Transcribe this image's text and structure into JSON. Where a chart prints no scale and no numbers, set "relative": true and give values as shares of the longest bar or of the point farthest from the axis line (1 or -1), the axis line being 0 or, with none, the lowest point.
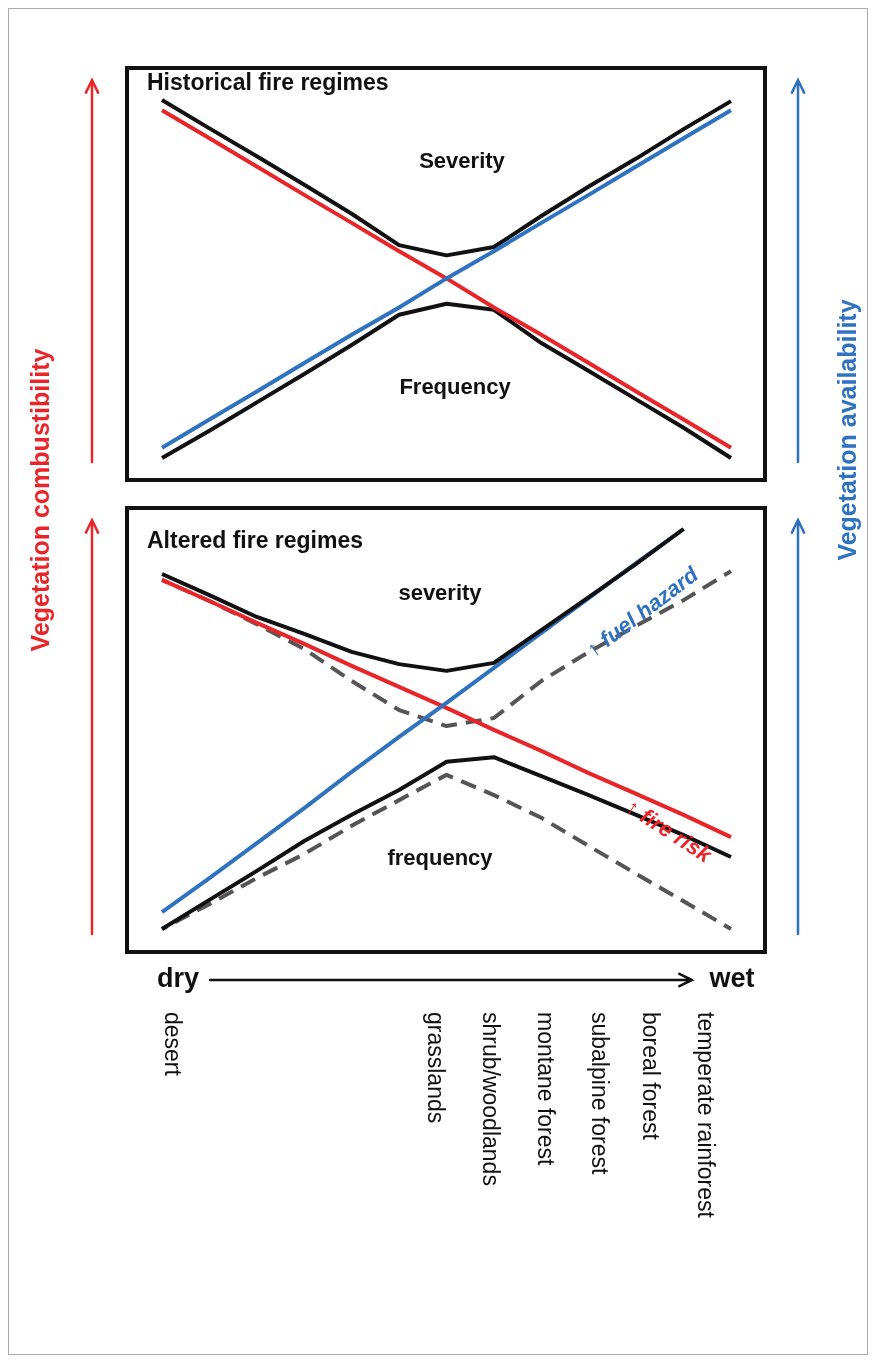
{
  "chart_data": [
    {
      "type": "line",
      "title": "Historical fire regimes",
      "relative": true,
      "categories": [
        null,
        null,
        null,
        null,
        null,
        null,
        null,
        null,
        null,
        null,
        null,
        null,
        null
      ],
      "series": [
        {
          "name": "Severity",
          "color": "#111111",
          "values": [
            1.0,
            0.925,
            0.851,
            0.776,
            0.699,
            0.616,
            0.589,
            0.611,
            0.693,
            0.771,
            0.845,
            0.923,
            0.997
          ]
        },
        {
          "name": "Frequency",
          "color": "#111111",
          "values": [
            0.053,
            0.125,
            0.2,
            0.275,
            0.352,
            0.432,
            0.461,
            0.445,
            0.357,
            0.283,
            0.208,
            0.133,
            0.053
          ]
        },
        {
          "color": "#e8262a",
          "values": [
            0.973,
            0.899,
            0.824,
            0.749,
            0.675,
            0.6,
            0.528,
            0.451,
            0.379,
            0.304,
            0.229,
            0.155,
            0.08
          ]
        },
        {
          "color": "#2f72c0",
          "values": [
            0.08,
            0.155,
            0.229,
            0.304,
            0.379,
            0.451,
            0.528,
            0.6,
            0.675,
            0.749,
            0.824,
            0.899,
            0.973
          ]
        }
      ]
    },
    {
      "type": "line",
      "title": "Altered fire regimes",
      "ylabel": "Vegetation combustibility",
      "y2label": "Vegetation availability",
      "relative": true,
      "categories": [
        null,
        null,
        null,
        null,
        null,
        null,
        null,
        null,
        null,
        null,
        null,
        null,
        null
      ],
      "series": [
        {
          "color": "#555555",
          "line_style": "dashed",
          "values": [
            0.879,
            0.829,
            0.774,
            0.715,
            0.639,
            0.57,
            0.532,
            0.551,
            0.639,
            0.708,
            0.77,
            0.831,
            0.9
          ]
        },
        {
          "color": "#555555",
          "line_style": "dashed",
          "values": [
            0.05,
            0.109,
            0.171,
            0.228,
            0.295,
            0.356,
            0.416,
            0.368,
            0.314,
            0.247,
            0.181,
            0.116,
            0.05
          ]
        },
        {
          "name": "↑ fire risk",
          "color": "#e8262a",
          "values": [
            0.879,
            0.829,
            0.777,
            0.727,
            0.675,
            0.625,
            0.575,
            0.523,
            0.473,
            0.42,
            0.371,
            0.321,
            0.268
          ]
        },
        {
          "name": "↑ fuel hazard",
          "color": "#2f72c0",
          "values": [
            0.09,
            0.171,
            0.254,
            0.337,
            0.423,
            0.506,
            0.587,
            0.67,
            0.753,
            0.836,
            0.919,
            1.0,
            null
          ]
        },
        {
          "name": "severity",
          "color": "#111111",
          "values": [
            0.893,
            0.843,
            0.791,
            0.751,
            0.708,
            0.679,
            0.663,
            0.682,
            0.76,
            0.838,
            0.917,
            1.0,
            null
          ]
        },
        {
          "name": "frequency",
          "color": "#111111",
          "values": [
            0.05,
            0.119,
            0.188,
            0.259,
            0.321,
            0.38,
            0.447,
            0.458,
            0.413,
            0.368,
            0.321,
            0.273,
            0.221
          ]
        }
      ],
      "annotations": [
        "dry",
        "wet",
        "desert",
        "grasslands",
        "shrub/woodlands",
        "montane forest",
        "subalpine forest",
        "boreal forest",
        "temperate rainforest"
      ]
    }
  ]
}
